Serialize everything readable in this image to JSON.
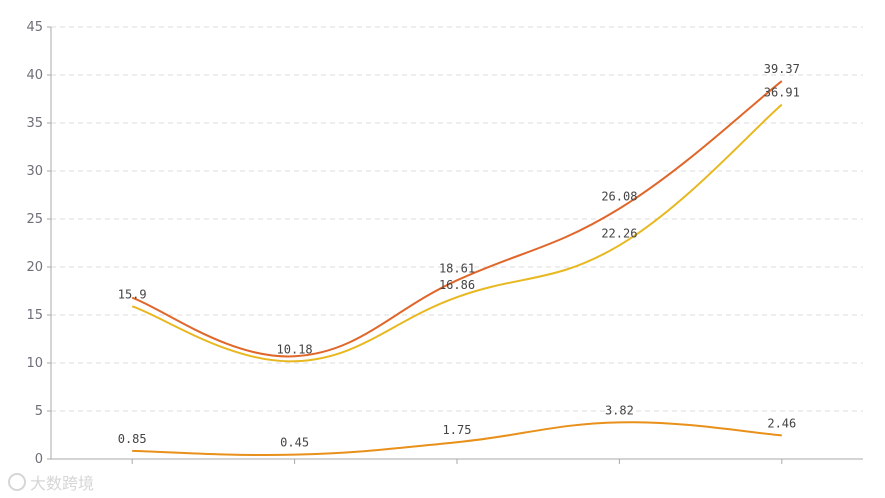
{
  "chart_data": {
    "type": "line",
    "title": "",
    "xlabel": "",
    "ylabel": "",
    "categories": [
      "",
      "",
      "",
      "",
      ""
    ],
    "ylim": [
      0,
      45
    ],
    "yticks": [
      0,
      5,
      10,
      15,
      20,
      25,
      30,
      35,
      40,
      45
    ],
    "grid": true,
    "smooth": true,
    "series": [
      {
        "color": "#e0662a",
        "values": [
          16.8,
          10.7,
          18.61,
          26.08,
          39.37
        ],
        "labels": [
          "",
          "",
          "18.61",
          "26.08",
          "39.37"
        ]
      },
      {
        "color": "#e8b820",
        "values": [
          15.9,
          10.18,
          16.86,
          22.26,
          36.91
        ],
        "labels": [
          "15.9",
          "10.18",
          "16.86",
          "22.26",
          "36.91"
        ]
      },
      {
        "color": "#e8901a",
        "values": [
          0.85,
          0.45,
          1.75,
          3.82,
          2.46
        ],
        "labels": [
          "0.85",
          "0.45",
          "1.75",
          "3.82",
          "2.46"
        ]
      }
    ]
  },
  "watermark": {
    "text": "大数跨境",
    "icon": "logo-icon"
  }
}
